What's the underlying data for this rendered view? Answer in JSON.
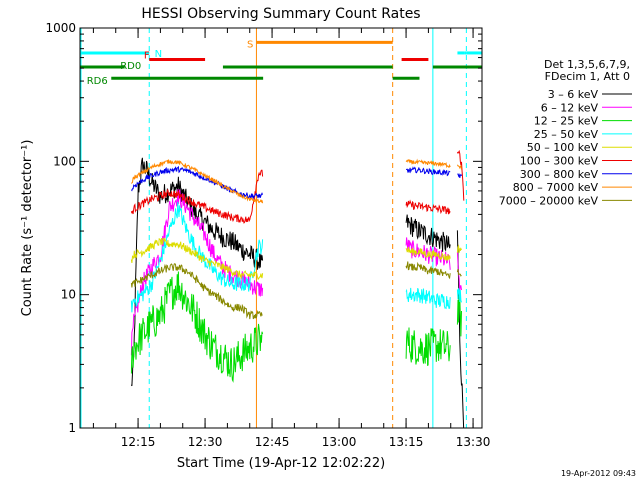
{
  "chart_data": {
    "type": "line",
    "title": "HESSI Observing Summary Count Rates",
    "xlabel": "Start Time (19-Apr-12 12:02:22)",
    "ylabel": "Count Rate (s⁻¹ detector⁻¹)",
    "yscale": "log",
    "ylim": [
      1,
      1000
    ],
    "xlim_minutes": [
      0,
      90.0
    ],
    "x_ticks": [
      {
        "t": 13.0,
        "label": "12:15"
      },
      {
        "t": 28.0,
        "label": "12:30"
      },
      {
        "t": 43.0,
        "label": "12:45"
      },
      {
        "t": 58.0,
        "label": "13:00"
      },
      {
        "t": 73.0,
        "label": "13:15"
      },
      {
        "t": 88.0,
        "label": "13:30"
      }
    ],
    "y_ticks": [
      {
        "v": 1,
        "label": "1"
      },
      {
        "v": 10,
        "label": "10"
      },
      {
        "v": 100,
        "label": "100"
      },
      {
        "v": 1000,
        "label": "1000"
      }
    ],
    "legend_header": [
      "Det 1,3,5,6,7,9,",
      "FDecim 1, Att 0"
    ],
    "series": [
      {
        "name": "3 - 6 keV",
        "label": "3 – 6 keV",
        "color": "#000000",
        "noise": 0.08,
        "segments": [
          {
            "t": [
              11.5,
              12,
              13,
              14,
              15,
              16,
              18,
              20,
              22,
              24,
              26,
              28,
              30,
              32,
              34,
              36,
              38,
              40,
              41
            ],
            "v": [
              2,
              3,
              60,
              95,
              85,
              70,
              55,
              60,
              65,
              50,
              40,
              35,
              30,
              27,
              25,
              22,
              20,
              18,
              16
            ]
          },
          {
            "t": [
              73,
              74,
              76,
              78,
              80,
              82,
              83
            ],
            "v": [
              35,
              33,
              30,
              28,
              26,
              24,
              22
            ]
          },
          {
            "t": [
              84.5,
              85,
              85.5,
              86
            ],
            "v": [
              30,
              5,
              2,
              1
            ]
          }
        ]
      },
      {
        "name": "6 - 12 keV",
        "label": "6 – 12 keV",
        "color": "#ff00ff",
        "noise": 0.07,
        "segments": [
          {
            "t": [
              11.5,
              12,
              14,
              16,
              18,
              20,
              22,
              24,
              26,
              28,
              30,
              32,
              34,
              36,
              38,
              40,
              41
            ],
            "v": [
              4,
              6,
              12,
              16,
              20,
              45,
              55,
              45,
              35,
              28,
              20,
              16,
              14,
              13,
              12,
              11,
              11
            ]
          },
          {
            "t": [
              73,
              74,
              76,
              78,
              80,
              82,
              83
            ],
            "v": [
              24,
              22,
              21,
              20,
              19,
              18,
              17
            ]
          },
          {
            "t": [
              84.5,
              85,
              85.5
            ],
            "v": [
              18,
              12,
              9
            ]
          }
        ]
      },
      {
        "name": "12 - 25 keV",
        "label": "12 – 25 keV",
        "color": "#00dd00",
        "noise": 0.14,
        "segments": [
          {
            "t": [
              11.5,
              12,
              14,
              16,
              18,
              20,
              22,
              24,
              26,
              28,
              30,
              32,
              34,
              36,
              38,
              40,
              41
            ],
            "v": [
              3,
              4,
              5,
              6,
              7,
              10,
              12,
              9,
              7,
              5,
              4,
              3.5,
              3,
              3.5,
              4,
              4.5,
              4.5
            ]
          },
          {
            "t": [
              73,
              74,
              76,
              78,
              80,
              82,
              83
            ],
            "v": [
              4.5,
              4.2,
              4,
              4,
              4.2,
              4,
              3.8
            ]
          },
          {
            "t": [
              84.5,
              85,
              85.5
            ],
            "v": [
              8,
              7,
              6
            ]
          }
        ]
      },
      {
        "name": "25 - 50 keV",
        "label": "25 – 50 keV",
        "color": "#00ffff",
        "noise": 0.06,
        "segments": [
          {
            "t": [
              11.5,
              12,
              14,
              16,
              18,
              20,
              22,
              24,
              26,
              28,
              30,
              32,
              34,
              36,
              38,
              40,
              41
            ],
            "v": [
              8,
              9,
              10,
              12,
              18,
              30,
              45,
              30,
              22,
              18,
              15,
              13,
              12,
              12,
              12,
              23,
              23
            ]
          },
          {
            "t": [
              73,
              74,
              76,
              78,
              80,
              82,
              83
            ],
            "v": [
              10,
              10,
              10,
              9.5,
              9,
              9,
              9
            ]
          },
          {
            "t": [
              84.5,
              85,
              85.5
            ],
            "v": [
              10,
              10,
              10
            ]
          }
        ]
      },
      {
        "name": "50 - 100 keV",
        "label": "50 – 100 keV",
        "color": "#dddd00",
        "noise": 0.03,
        "segments": [
          {
            "t": [
              11.5,
              12,
              14,
              16,
              18,
              20,
              22,
              24,
              26,
              28,
              30,
              32,
              34,
              36,
              38,
              40,
              41
            ],
            "v": [
              18,
              20,
              21,
              23,
              25,
              24,
              24,
              22,
              20,
              18,
              17,
              16,
              15,
              14,
              14,
              14,
              14
            ]
          },
          {
            "t": [
              73,
              74,
              76,
              78,
              80,
              82,
              83
            ],
            "v": [
              22,
              21,
              21,
              20,
              20,
              19,
              19
            ]
          },
          {
            "t": [
              84.5,
              85,
              85.5
            ],
            "v": [
              22,
              22,
              22
            ]
          }
        ]
      },
      {
        "name": "100 - 300 keV",
        "label": "100 – 300 keV",
        "color": "#ee0000",
        "noise": 0.03,
        "segments": [
          {
            "t": [
              11.5,
              12,
              14,
              16,
              18,
              20,
              22,
              24,
              26,
              28,
              30,
              32,
              34,
              36,
              38,
              40,
              41
            ],
            "v": [
              40,
              44,
              48,
              52,
              55,
              58,
              56,
              52,
              48,
              45,
              42,
              40,
              38,
              37,
              36,
              82,
              80
            ]
          },
          {
            "t": [
              73,
              74,
              76,
              78,
              80,
              82,
              83
            ],
            "v": [
              48,
              47,
              46,
              45,
              44,
              43,
              42
            ]
          },
          {
            "t": [
              84.5,
              85,
              85.5,
              86
            ],
            "v": [
              110,
              115,
              90,
              50
            ]
          }
        ]
      },
      {
        "name": "300 - 800 keV",
        "label": "300 – 800 keV",
        "color": "#0000ee",
        "noise": 0.02,
        "segments": [
          {
            "t": [
              11.5,
              12,
              14,
              16,
              18,
              20,
              22,
              24,
              26,
              28,
              30,
              32,
              34,
              36,
              38,
              40,
              41
            ],
            "v": [
              60,
              65,
              72,
              78,
              83,
              86,
              87,
              85,
              80,
              75,
              70,
              65,
              60,
              57,
              55,
              55,
              55
            ]
          },
          {
            "t": [
              73,
              74,
              76,
              78,
              80,
              82,
              83
            ],
            "v": [
              85,
              86,
              86,
              84,
              83,
              82,
              80
            ]
          },
          {
            "t": [
              84.5,
              85,
              85.5
            ],
            "v": [
              80,
              78,
              75
            ]
          }
        ]
      },
      {
        "name": "800 - 7000 keV",
        "label": "800 – 7000 keV",
        "color": "#ff8800",
        "noise": 0.015,
        "segments": [
          {
            "t": [
              11.5,
              12,
              14,
              16,
              18,
              20,
              22,
              24,
              26,
              28,
              30,
              32,
              34,
              36,
              38,
              40,
              41
            ],
            "v": [
              68,
              75,
              82,
              90,
              96,
              100,
              98,
              92,
              85,
              78,
              72,
              65,
              60,
              55,
              52,
              50,
              50
            ]
          },
          {
            "t": [
              73,
              74,
              76,
              78,
              80,
              82,
              83
            ],
            "v": [
              100,
              99,
              98,
              97,
              96,
              94,
              92
            ]
          },
          {
            "t": [
              84.5,
              85,
              85.5
            ],
            "v": [
              95,
              92,
              88
            ]
          }
        ]
      },
      {
        "name": "7000 - 20000 keV",
        "label": "7000 – 20000 keV",
        "color": "#888800",
        "noise": 0.03,
        "segments": [
          {
            "t": [
              11.5,
              12,
              14,
              16,
              18,
              20,
              22,
              24,
              26,
              28,
              30,
              32,
              34,
              36,
              38,
              40,
              41
            ],
            "v": [
              12,
              12,
              13,
              14,
              15,
              16,
              16,
              15,
              13,
              11,
              10,
              9,
              8,
              8,
              7,
              7,
              7
            ]
          },
          {
            "t": [
              73,
              74,
              76,
              78,
              80,
              82,
              83
            ],
            "v": [
              17,
              16,
              16,
              15,
              15,
              14,
              14
            ]
          },
          {
            "t": [
              84.5,
              85,
              85.5
            ],
            "v": [
              15,
              14,
              14
            ]
          }
        ]
      }
    ],
    "flag_bars": [
      {
        "name": "N",
        "label": "N",
        "color": "#00ffff",
        "level": 650,
        "ranges": [
          [
            0,
            15.5
          ],
          [
            84.5,
            86
          ],
          [
            86,
            86.5
          ],
          [
            86.5,
            90
          ]
        ]
      },
      {
        "name": "F",
        "label": "F",
        "color": "#ee0000",
        "level": 580,
        "ranges": [
          [
            15.5,
            28
          ],
          [
            72,
            78
          ]
        ]
      },
      {
        "name": "S",
        "label": "S",
        "color": "#ff8800",
        "level": 780,
        "ranges": [
          [
            39.5,
            70
          ]
        ]
      },
      {
        "name": "RD0",
        "label": "RD0",
        "color": "#008800",
        "level": 510,
        "ranges": [
          [
            0,
            10
          ],
          [
            32,
            70
          ],
          [
            79,
            90
          ]
        ]
      },
      {
        "name": "RD6",
        "label": "RD6",
        "color": "#008800",
        "level": 420,
        "ranges": [
          [
            7,
            41
          ],
          [
            70,
            76
          ]
        ]
      }
    ],
    "vlines": [
      {
        "t": 15.5,
        "color": "#00ffff",
        "style": "dashed"
      },
      {
        "t": 39.5,
        "color": "#ff8800",
        "style": "solid"
      },
      {
        "t": 70.0,
        "color": "#ff8800",
        "style": "dashed"
      },
      {
        "t": 79.0,
        "color": "#00ffff",
        "style": "solid"
      },
      {
        "t": 86.5,
        "color": "#00ffff",
        "style": "dashed"
      }
    ],
    "left_edge_cyan": true,
    "timestamp": "19-Apr-2012 09:43"
  }
}
